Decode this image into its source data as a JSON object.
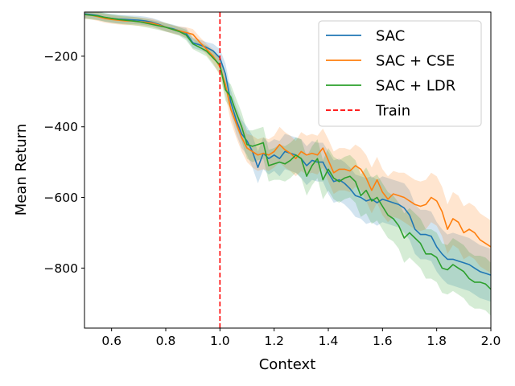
{
  "chart_data": {
    "type": "line",
    "title": "",
    "xlabel": "Context",
    "ylabel": "Mean Return",
    "xlim": [
      0.5,
      2.0
    ],
    "ylim": [
      -970,
      -75
    ],
    "xticks": [
      0.6,
      0.8,
      1.0,
      1.2,
      1.4,
      1.6,
      1.8,
      2.0
    ],
    "xtick_labels": [
      "0.6",
      "0.8",
      "1.0",
      "1.2",
      "1.4",
      "1.6",
      "1.8",
      "2.0"
    ],
    "yticks": [
      -200,
      -400,
      -600,
      -800
    ],
    "ytick_labels": [
      "−200",
      "−400",
      "−600",
      "−800"
    ],
    "grid": false,
    "legend_position": "top-right",
    "x": [
      0.5,
      0.525,
      0.55,
      0.575,
      0.6,
      0.625,
      0.65,
      0.675,
      0.7,
      0.725,
      0.75,
      0.775,
      0.8,
      0.825,
      0.85,
      0.875,
      0.9,
      0.925,
      0.95,
      0.975,
      1.0,
      1.02,
      1.04,
      1.06,
      1.08,
      1.1,
      1.12,
      1.14,
      1.16,
      1.18,
      1.2,
      1.22,
      1.24,
      1.26,
      1.28,
      1.3,
      1.32,
      1.34,
      1.36,
      1.38,
      1.4,
      1.42,
      1.44,
      1.46,
      1.48,
      1.5,
      1.52,
      1.54,
      1.56,
      1.58,
      1.6,
      1.62,
      1.64,
      1.66,
      1.68,
      1.7,
      1.72,
      1.74,
      1.76,
      1.78,
      1.8,
      1.82,
      1.84,
      1.86,
      1.88,
      1.9,
      1.92,
      1.94,
      1.96,
      1.98,
      2.0
    ],
    "series": [
      {
        "name": "SAC",
        "color": "#1f77b4",
        "values": [
          -80,
          -82,
          -85,
          -90,
          -93,
          -95,
          -96,
          -97,
          -98,
          -100,
          -104,
          -110,
          -118,
          -122,
          -128,
          -135,
          -162,
          -168,
          -175,
          -185,
          -205,
          -250,
          -330,
          -380,
          -420,
          -440,
          -470,
          -515,
          -475,
          -490,
          -480,
          -490,
          -470,
          -475,
          -480,
          -490,
          -510,
          -495,
          -500,
          -500,
          -530,
          -555,
          -550,
          -560,
          -575,
          -595,
          -600,
          -610,
          -605,
          -615,
          -605,
          -610,
          -615,
          -620,
          -630,
          -650,
          -690,
          -705,
          -705,
          -710,
          -740,
          -760,
          -775,
          -775,
          -780,
          -785,
          -790,
          -800,
          -810,
          -815,
          -820
        ],
        "band": [
          12,
          12,
          12,
          12,
          12,
          12,
          12,
          12,
          12,
          12,
          12,
          12,
          12,
          12,
          12,
          15,
          15,
          15,
          15,
          20,
          25,
          30,
          35,
          40,
          40,
          40,
          45,
          45,
          45,
          45,
          45,
          50,
          50,
          50,
          50,
          55,
          55,
          55,
          55,
          55,
          60,
          60,
          60,
          60,
          60,
          60,
          60,
          65,
          65,
          65,
          65,
          65,
          65,
          65,
          70,
          70,
          70,
          70,
          70,
          70,
          70,
          70,
          70,
          75,
          75,
          75,
          75,
          75,
          75,
          75,
          75
        ]
      },
      {
        "name": "SAC + CSE",
        "color": "#ff7f0e",
        "values": [
          -82,
          -84,
          -88,
          -93,
          -96,
          -98,
          -100,
          -100,
          -102,
          -104,
          -106,
          -112,
          -118,
          -124,
          -128,
          -133,
          -138,
          -160,
          -180,
          -200,
          -230,
          -280,
          -350,
          -390,
          -430,
          -460,
          -470,
          -480,
          -475,
          -480,
          -470,
          -450,
          -465,
          -475,
          -490,
          -470,
          -480,
          -475,
          -480,
          -460,
          -495,
          -530,
          -520,
          -520,
          -525,
          -510,
          -520,
          -545,
          -580,
          -550,
          -585,
          -605,
          -590,
          -595,
          -600,
          -610,
          -620,
          -625,
          -620,
          -600,
          -610,
          -640,
          -690,
          -660,
          -670,
          -700,
          -690,
          -700,
          -720,
          -730,
          -740
        ],
        "band": [
          12,
          12,
          12,
          12,
          12,
          12,
          12,
          12,
          12,
          12,
          12,
          12,
          12,
          12,
          12,
          15,
          15,
          15,
          15,
          20,
          25,
          30,
          35,
          40,
          40,
          40,
          45,
          45,
          45,
          45,
          45,
          50,
          50,
          50,
          50,
          55,
          55,
          55,
          55,
          55,
          60,
          60,
          60,
          60,
          60,
          60,
          60,
          65,
          65,
          65,
          65,
          65,
          65,
          65,
          70,
          70,
          70,
          70,
          70,
          70,
          70,
          70,
          70,
          75,
          75,
          75,
          75,
          75,
          75,
          75,
          75
        ]
      },
      {
        "name": "SAC + LDR",
        "color": "#2ca02c",
        "values": [
          -82,
          -84,
          -86,
          -90,
          -93,
          -96,
          -98,
          -100,
          -102,
          -106,
          -110,
          -114,
          -118,
          -124,
          -130,
          -140,
          -165,
          -175,
          -185,
          -205,
          -225,
          -295,
          -315,
          -360,
          -400,
          -450,
          -455,
          -450,
          -445,
          -510,
          -505,
          -500,
          -505,
          -495,
          -480,
          -490,
          -540,
          -510,
          -490,
          -550,
          -520,
          -545,
          -555,
          -545,
          -540,
          -555,
          -595,
          -580,
          -610,
          -600,
          -625,
          -650,
          -660,
          -680,
          -715,
          -700,
          -715,
          -730,
          -760,
          -760,
          -770,
          -800,
          -805,
          -790,
          -800,
          -810,
          -830,
          -840,
          -840,
          -845,
          -860
        ],
        "band": [
          12,
          12,
          12,
          12,
          12,
          12,
          12,
          12,
          12,
          12,
          12,
          12,
          12,
          12,
          12,
          15,
          15,
          15,
          15,
          20,
          25,
          30,
          35,
          40,
          40,
          40,
          45,
          45,
          45,
          45,
          45,
          50,
          50,
          50,
          50,
          55,
          55,
          55,
          55,
          55,
          60,
          60,
          60,
          60,
          60,
          60,
          60,
          65,
          65,
          65,
          65,
          65,
          65,
          65,
          70,
          70,
          70,
          70,
          70,
          70,
          70,
          70,
          70,
          75,
          75,
          75,
          75,
          75,
          75,
          75,
          75
        ]
      }
    ],
    "vline": {
      "name": "Train",
      "x": 1.0,
      "color": "#ff0000",
      "style": "dashed"
    }
  }
}
